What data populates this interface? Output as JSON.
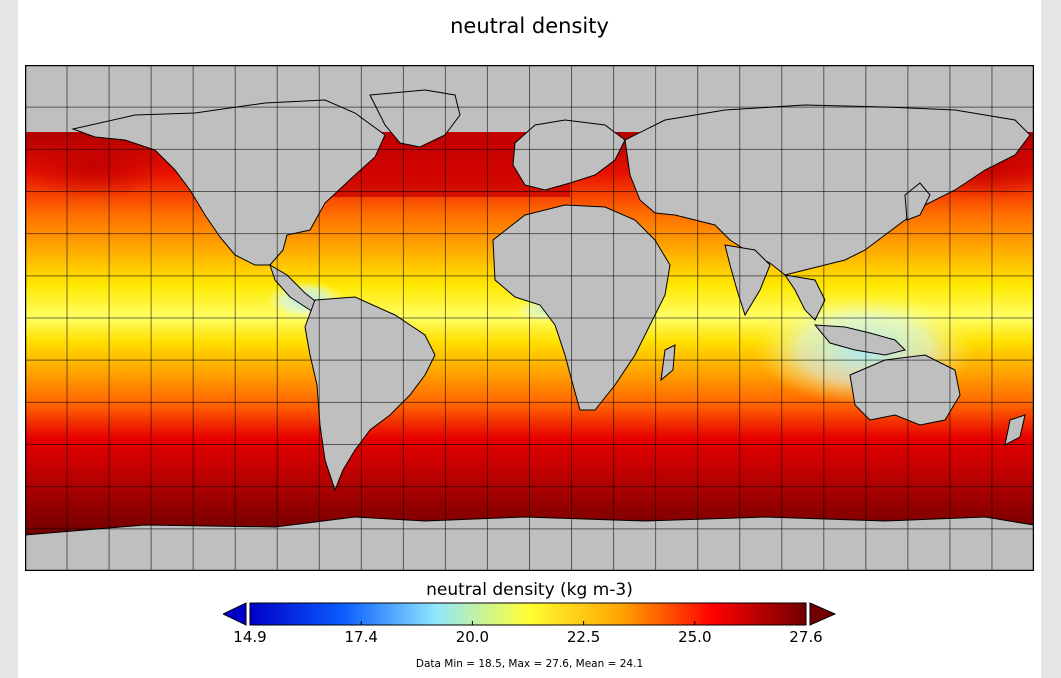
{
  "title": "neutral density",
  "colorbar": {
    "label": "neutral density (kg m-3)",
    "ticks": [
      "14.9",
      "17.4",
      "20.0",
      "22.5",
      "25.0",
      "27.6"
    ],
    "stops": [
      "#0000c8",
      "#0a5cff",
      "#8fe6ff",
      "#ffff33",
      "#ffa500",
      "#ff0000",
      "#700000"
    ]
  },
  "stats": "Data Min = 18.5, Max = 27.6, Mean = 24.1",
  "map": {
    "land_color": "#bfbfbf",
    "grid": true,
    "coastline_color": "#000000",
    "lon_range": [
      -180,
      180
    ],
    "lat_range": [
      -90,
      90
    ]
  }
}
